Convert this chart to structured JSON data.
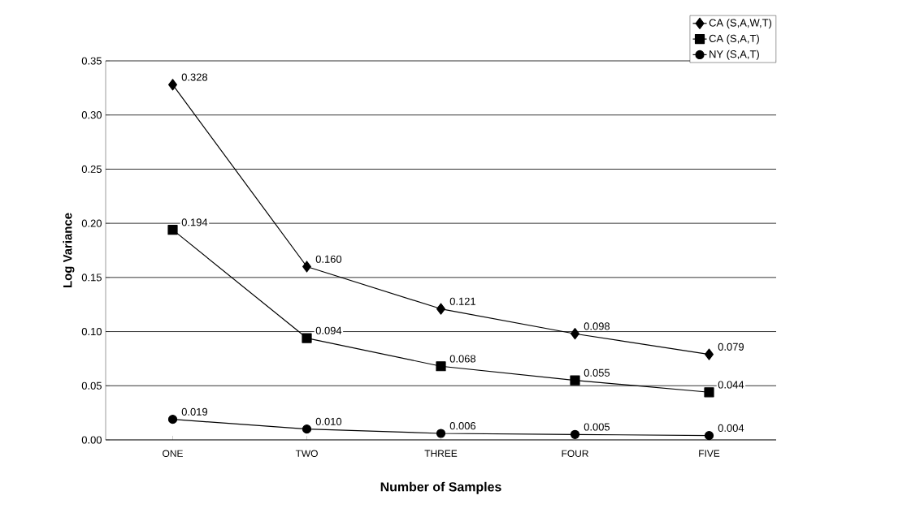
{
  "chart_data": {
    "type": "line",
    "xlabel": "Number of Samples",
    "ylabel": "Log Variance",
    "categories": [
      "ONE",
      "TWO",
      "THREE",
      "FOUR",
      "FIVE"
    ],
    "series": [
      {
        "name": "CA (S,A,W,T)",
        "color": "#000000",
        "marker": "diamond",
        "values": [
          0.328,
          0.16,
          0.121,
          0.098,
          0.079
        ],
        "value_labels": [
          "0.328",
          "0.160",
          "0.121",
          "0.098",
          "0.079"
        ]
      },
      {
        "name": "CA (S,A,T)",
        "color": "#000000",
        "marker": "square",
        "values": [
          0.194,
          0.094,
          0.068,
          0.055,
          0.044
        ],
        "value_labels": [
          "0.194",
          "0.094",
          "0.068",
          "0.055",
          "0.044"
        ]
      },
      {
        "name": "NY (S,A,T)",
        "color": "#000000",
        "marker": "circle",
        "values": [
          0.019,
          0.01,
          0.006,
          0.005,
          0.004
        ],
        "value_labels": [
          "0.019",
          "0.010",
          "0.006",
          "0.005",
          "0.004"
        ]
      }
    ],
    "ylim": [
      0,
      0.35
    ],
    "yticks": [
      {
        "value": 0,
        "label": "0.00"
      },
      {
        "value": 0.05,
        "label": "0.05"
      },
      {
        "value": 0.1,
        "label": "0.10"
      },
      {
        "value": 0.15,
        "label": "0.15"
      },
      {
        "value": 0.2,
        "label": "0.20"
      },
      {
        "value": 0.25,
        "label": "0.25"
      },
      {
        "value": 0.3,
        "label": "0.30"
      },
      {
        "value": 0.35,
        "label": "0.35"
      }
    ],
    "grid": "y",
    "legend": "top right"
  }
}
